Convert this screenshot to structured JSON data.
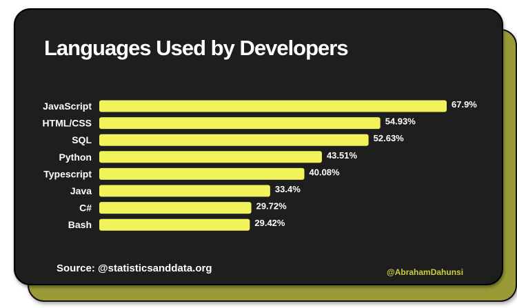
{
  "chart_data": {
    "type": "bar",
    "orientation": "horizontal",
    "title": "Languages Used by Developers",
    "categories": [
      "JavaScript",
      "HTML/CSS",
      "SQL",
      "Python",
      "Typescript",
      "Java",
      "C#",
      "Bash"
    ],
    "values": [
      67.9,
      54.93,
      52.63,
      43.51,
      40.08,
      33.4,
      29.72,
      29.42
    ],
    "data_labels": [
      "67.9%",
      "54.93%",
      "52.63%",
      "43.51%",
      "40.08%",
      "33.4%",
      "29.72%",
      "29.42%"
    ],
    "xlim": [
      0,
      67.9
    ],
    "grid": false,
    "bar_color": "#f2f25a"
  },
  "footer": {
    "source": "Source: @statisticsanddata.org",
    "handle": "@AbrahamDahunsi"
  },
  "colors": {
    "card": "#1e1e1e",
    "back_card": "#9a9a36",
    "handle": "#c9d13a"
  }
}
